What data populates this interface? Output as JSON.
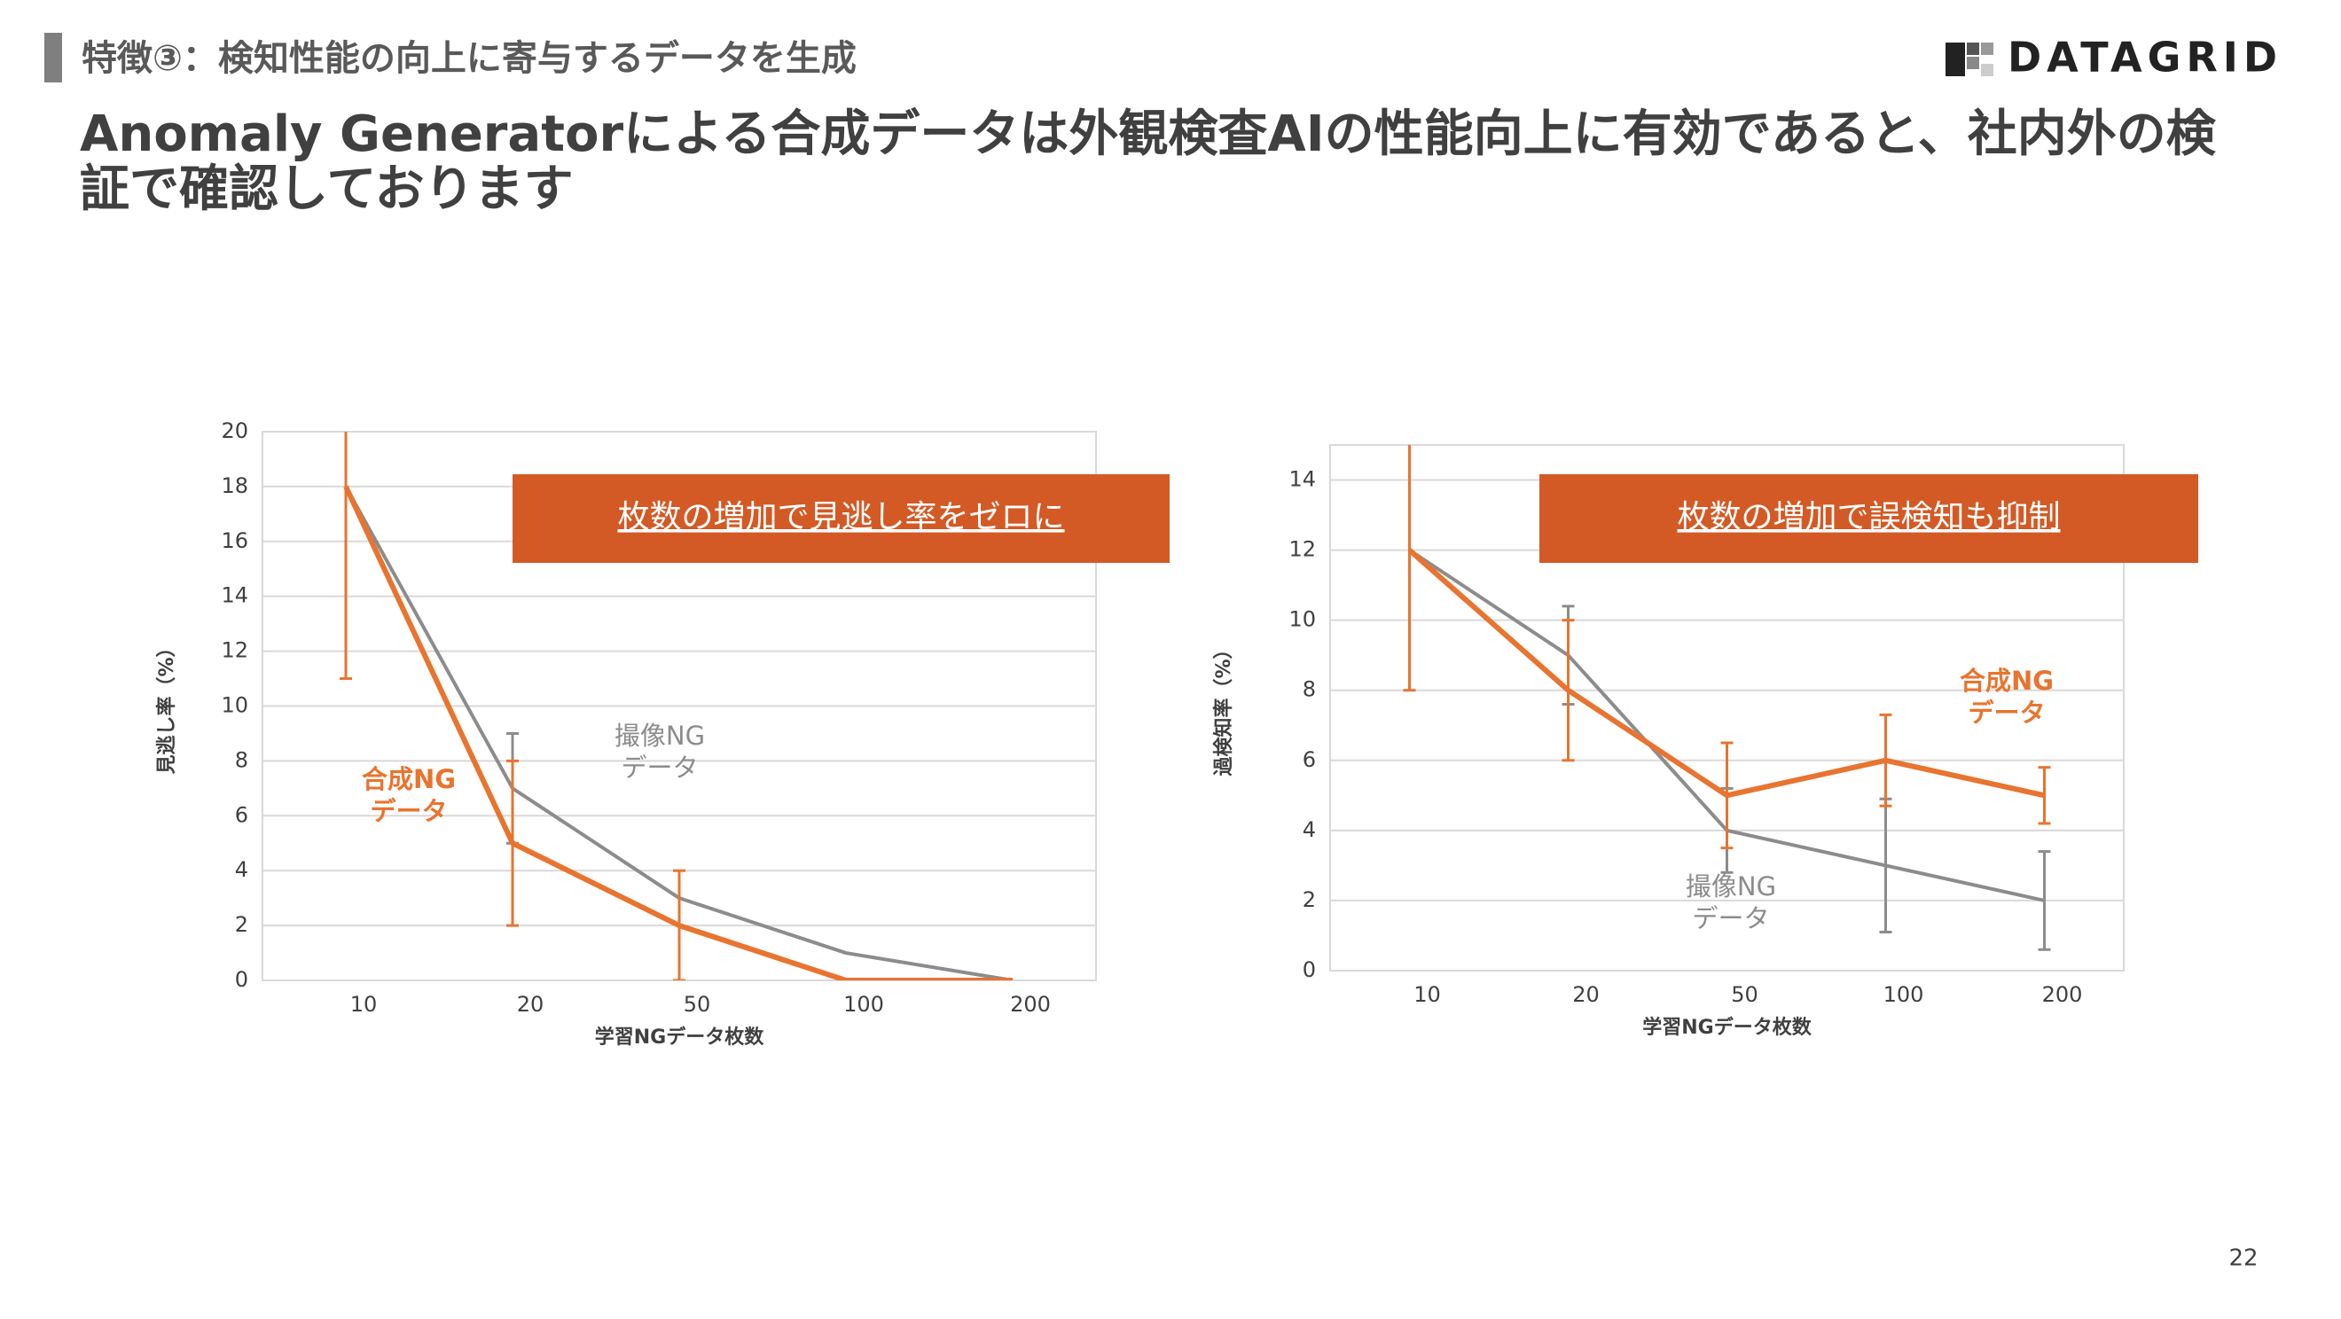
{
  "header": {
    "section": "特徴③：検知性能の向上に寄与するデータを生成",
    "title_lines": [
      "Anomaly Generatorによる合成データは外観検査AIの性能向上に有効であると、社内外の検",
      "証で確認しております"
    ],
    "logo": "DATAGRID",
    "page_number": "22"
  },
  "chart_data": [
    {
      "type": "line",
      "y_label": "見逃し率（%）",
      "x_label": "学習NGデータ枚数",
      "callout": "枚数の増加で見逃し率をゼロに",
      "categories": [
        "10",
        "20",
        "50",
        "100",
        "200"
      ],
      "ylim": [
        0,
        20
      ],
      "yticks": [
        0,
        2,
        4,
        6,
        8,
        10,
        12,
        14,
        16,
        18,
        20
      ],
      "grid": true,
      "series": [
        {
          "label": [
            "撮像NG",
            "データ"
          ],
          "color": "#8c8c8c",
          "values": [
            18,
            7,
            3,
            1,
            0
          ],
          "errors": [
            null,
            2,
            null,
            null,
            null
          ]
        },
        {
          "label": [
            "合成NG",
            "データ"
          ],
          "color": "#e8742f",
          "values": [
            18,
            5,
            2,
            0,
            0
          ],
          "errors": [
            7,
            3,
            2,
            null,
            null
          ]
        }
      ]
    },
    {
      "type": "line",
      "y_label": "過検知率（%）",
      "x_label": "学習NGデータ枚数",
      "callout": "枚数の増加で誤検知も抑制",
      "categories": [
        "10",
        "20",
        "50",
        "100",
        "200"
      ],
      "ylim": [
        0,
        15
      ],
      "yticks": [
        0,
        2,
        4,
        6,
        8,
        10,
        12,
        14
      ],
      "grid": true,
      "series": [
        {
          "label": [
            "撮像NG",
            "データ"
          ],
          "color": "#8c8c8c",
          "values": [
            12,
            9,
            4,
            3,
            2
          ],
          "errors": [
            null,
            1.4,
            1.2,
            1.9,
            1.4
          ]
        },
        {
          "label": [
            "合成NG",
            "データ"
          ],
          "color": "#e8742f",
          "values": [
            12,
            8,
            5,
            6,
            5
          ],
          "errors": [
            4,
            2,
            1.5,
            1.3,
            0.8
          ]
        }
      ]
    }
  ]
}
